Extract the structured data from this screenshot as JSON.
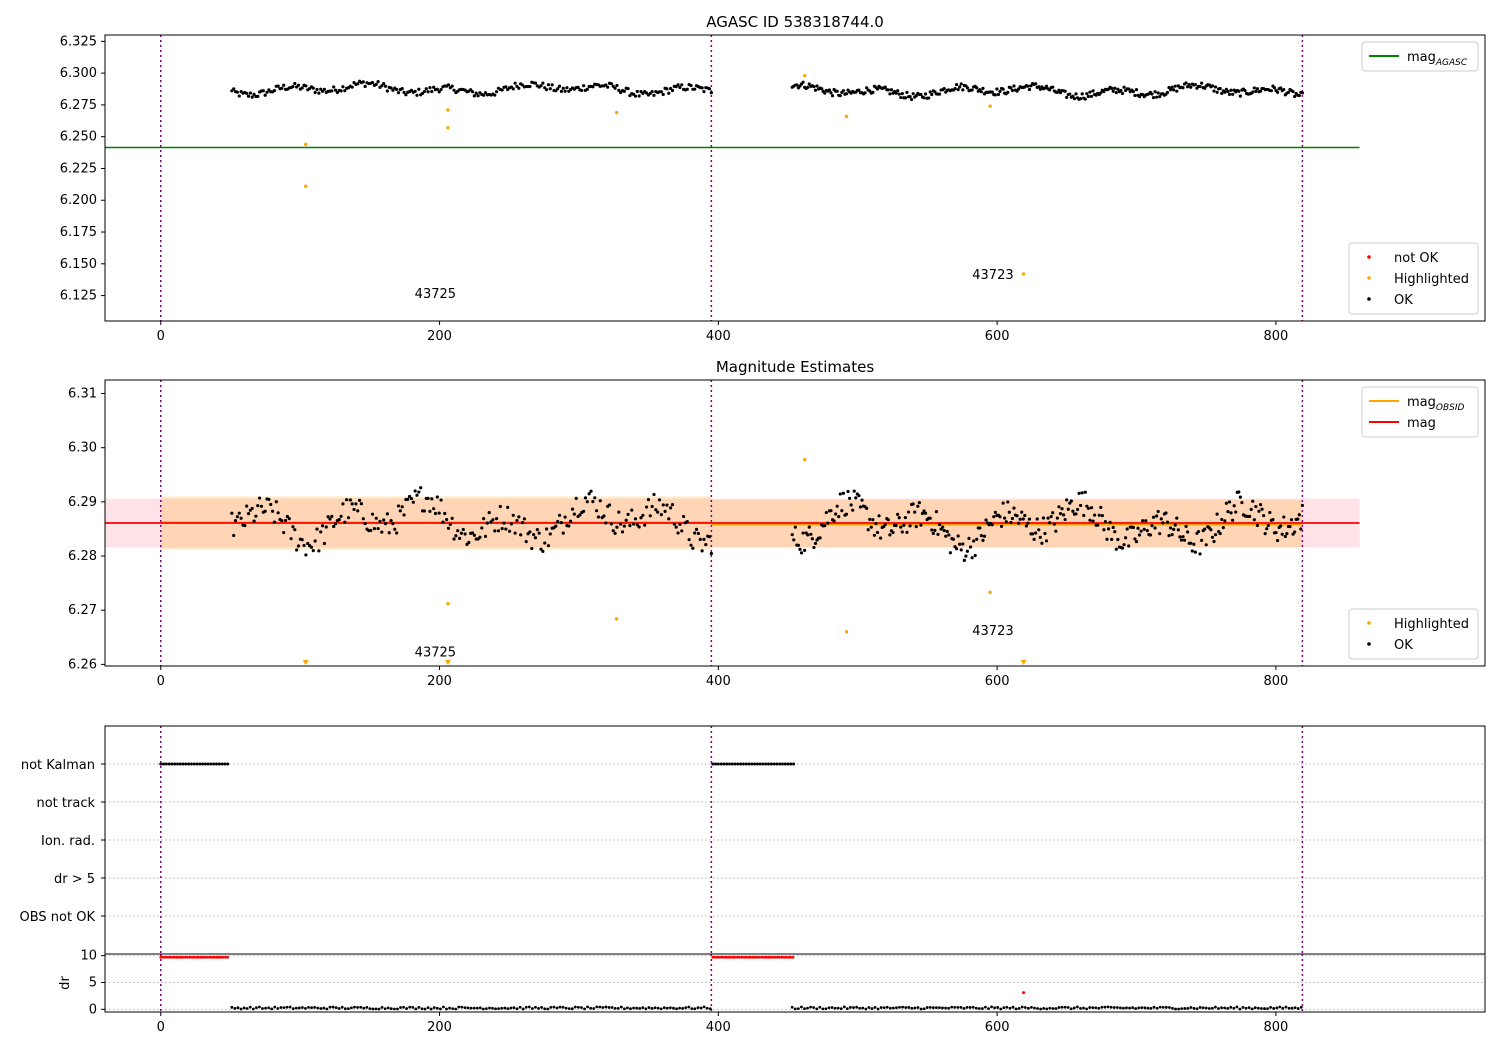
{
  "chart_data": [
    {
      "type": "scatter",
      "title": "AGASC ID 538318744.0",
      "xlim": [
        -40,
        950
      ],
      "ylim": [
        6.105,
        6.33
      ],
      "xticks": [
        0,
        200,
        400,
        600,
        800
      ],
      "yticks": [
        6.125,
        6.15,
        6.175,
        6.2,
        6.225,
        6.25,
        6.275,
        6.3,
        6.325
      ],
      "ytick_format": 3,
      "obsid_boundaries": [
        0,
        395,
        819
      ],
      "obsid_labels": [
        {
          "text": "43725",
          "x": 197,
          "y": 6.123
        },
        {
          "text": "43723",
          "x": 597,
          "y": 6.138
        }
      ],
      "lines": [
        {
          "name": "mag",
          "sub": "AGASC",
          "color": "#008000",
          "y": 6.2415,
          "x_range": [
            -40,
            860
          ]
        }
      ],
      "series": [
        {
          "name": "OK",
          "color": "#000000",
          "kind": "ok"
        },
        {
          "name": "Highlighted",
          "color": "#ffa500",
          "points": [
            [
              104,
              6.244
            ],
            [
              104,
              6.211
            ],
            [
              206,
              6.271
            ],
            [
              206,
              6.257
            ],
            [
              327,
              6.269
            ],
            [
              462,
              6.298
            ],
            [
              492,
              6.266
            ],
            [
              595,
              6.274
            ],
            [
              619,
              6.142
            ]
          ]
        },
        {
          "name": "not OK",
          "color": "#ff0000",
          "points": []
        }
      ],
      "ok_segments": [
        {
          "x_start": 51,
          "x_end": 395,
          "count": 260,
          "center": 6.2875,
          "amp": 0.006
        },
        {
          "x_start": 453,
          "x_end": 819,
          "count": 330,
          "center": 6.286,
          "amp": 0.006
        }
      ],
      "legends": [
        {
          "placement": "upper right",
          "entries": [
            {
              "label": "mag",
              "sub": "AGASC",
              "kind": "line",
              "color": "#008000"
            }
          ]
        },
        {
          "placement": "lower right",
          "entries": [
            {
              "label": "not OK",
              "kind": "dot",
              "color": "#ff0000"
            },
            {
              "label": "Highlighted",
              "kind": "dot",
              "color": "#ffa500"
            },
            {
              "label": "OK",
              "kind": "dot",
              "color": "#000000"
            }
          ]
        }
      ]
    },
    {
      "type": "scatter",
      "title": "Magnitude Estimates",
      "xlim": [
        -40,
        950
      ],
      "ylim": [
        6.2597,
        6.3125
      ],
      "xticks": [
        0,
        200,
        400,
        600,
        800
      ],
      "yticks": [
        6.26,
        6.27,
        6.28,
        6.29,
        6.3,
        6.31
      ],
      "ytick_format": 2,
      "obsid_boundaries": [
        0,
        395,
        819
      ],
      "obsid_labels": [
        {
          "text": "43725",
          "x": 197,
          "y": 6.2615
        },
        {
          "text": "43723",
          "x": 597,
          "y": 6.2654
        }
      ],
      "bands": [
        {
          "color": "#ffc0cb",
          "opacity": 0.45,
          "y_range": [
            6.2816,
            6.2906
          ],
          "x_range": [
            -40,
            860
          ]
        },
        {
          "color": "#ffa500",
          "opacity": 0.22,
          "y_range": [
            6.2812,
            6.291
          ],
          "x_range": [
            0,
            395
          ]
        },
        {
          "color": "#ffa500",
          "opacity": 0.22,
          "y_range": [
            6.2816,
            6.2904
          ],
          "x_range": [
            395,
            819
          ]
        }
      ],
      "lines": [
        {
          "name": "mag",
          "sub": "OBSID",
          "color": "#ffa500",
          "segments": [
            [
              0,
              395,
              6.2862
            ],
            [
              395,
              819,
              6.2858
            ]
          ]
        },
        {
          "name": "mag",
          "color": "#ff0000",
          "y": 6.2861,
          "x_range": [
            -40,
            860
          ]
        }
      ],
      "series": [
        {
          "name": "OK",
          "color": "#000000",
          "kind": "ok"
        },
        {
          "name": "Highlighted",
          "color": "#ffa500",
          "points": [
            [
              206,
              6.2712
            ],
            [
              327,
              6.2684
            ],
            [
              462,
              6.2978
            ],
            [
              492,
              6.266
            ],
            [
              595,
              6.2733
            ]
          ],
          "clipped": [
            104,
            206,
            619
          ]
        }
      ],
      "ok_segments": [
        {
          "x_start": 51,
          "x_end": 395,
          "count": 260,
          "center": 6.2866,
          "amp": 0.0055
        },
        {
          "x_start": 453,
          "x_end": 819,
          "count": 330,
          "center": 6.2858,
          "amp": 0.0055
        }
      ],
      "legends": [
        {
          "placement": "upper right",
          "entries": [
            {
              "label": "mag",
              "sub": "OBSID",
              "kind": "line",
              "color": "#ffa500"
            },
            {
              "label": "mag",
              "kind": "line",
              "color": "#ff0000"
            }
          ]
        },
        {
          "placement": "lower right",
          "entries": [
            {
              "label": "Highlighted",
              "kind": "dot",
              "color": "#ffa500"
            },
            {
              "label": "OK",
              "kind": "dot",
              "color": "#000000"
            }
          ]
        }
      ]
    },
    {
      "type": "scatter",
      "title": "",
      "xlim": [
        -40,
        950
      ],
      "categories": [
        "not Kalman",
        "not track",
        "Ion. rad.",
        "dr > 5",
        "OBS not OK"
      ],
      "flag_series": [
        {
          "category": "not Kalman",
          "color": "#000000",
          "ranges": [
            [
              0,
              49
            ],
            [
              396,
              454
            ]
          ],
          "step": 2
        }
      ],
      "obsid_boundaries": [
        0,
        395,
        819
      ]
    },
    {
      "type": "scatter",
      "title": "",
      "ylabel": "dr",
      "xlim": [
        -40,
        950
      ],
      "ylim": [
        -0.5,
        10.3
      ],
      "xticks": [
        0,
        200,
        400,
        600,
        800
      ],
      "yticks": [
        0,
        5,
        10
      ],
      "ytick_format": 0,
      "obsid_boundaries": [
        0,
        395,
        819
      ],
      "series": [
        {
          "name": "dr high",
          "color": "#ff0000",
          "ranges": [
            [
              0,
              49
            ],
            [
              396,
              454
            ]
          ],
          "y": 9.7,
          "step": 1.6
        },
        {
          "name": "dr",
          "color": "#000000",
          "ranges": [
            [
              51,
              395
            ],
            [
              453,
              819
            ]
          ],
          "y": 0.25,
          "step": 2.2
        },
        {
          "name": "outlier",
          "color": "#ff0000",
          "points": [
            [
              619,
              3.1
            ]
          ]
        }
      ]
    }
  ]
}
